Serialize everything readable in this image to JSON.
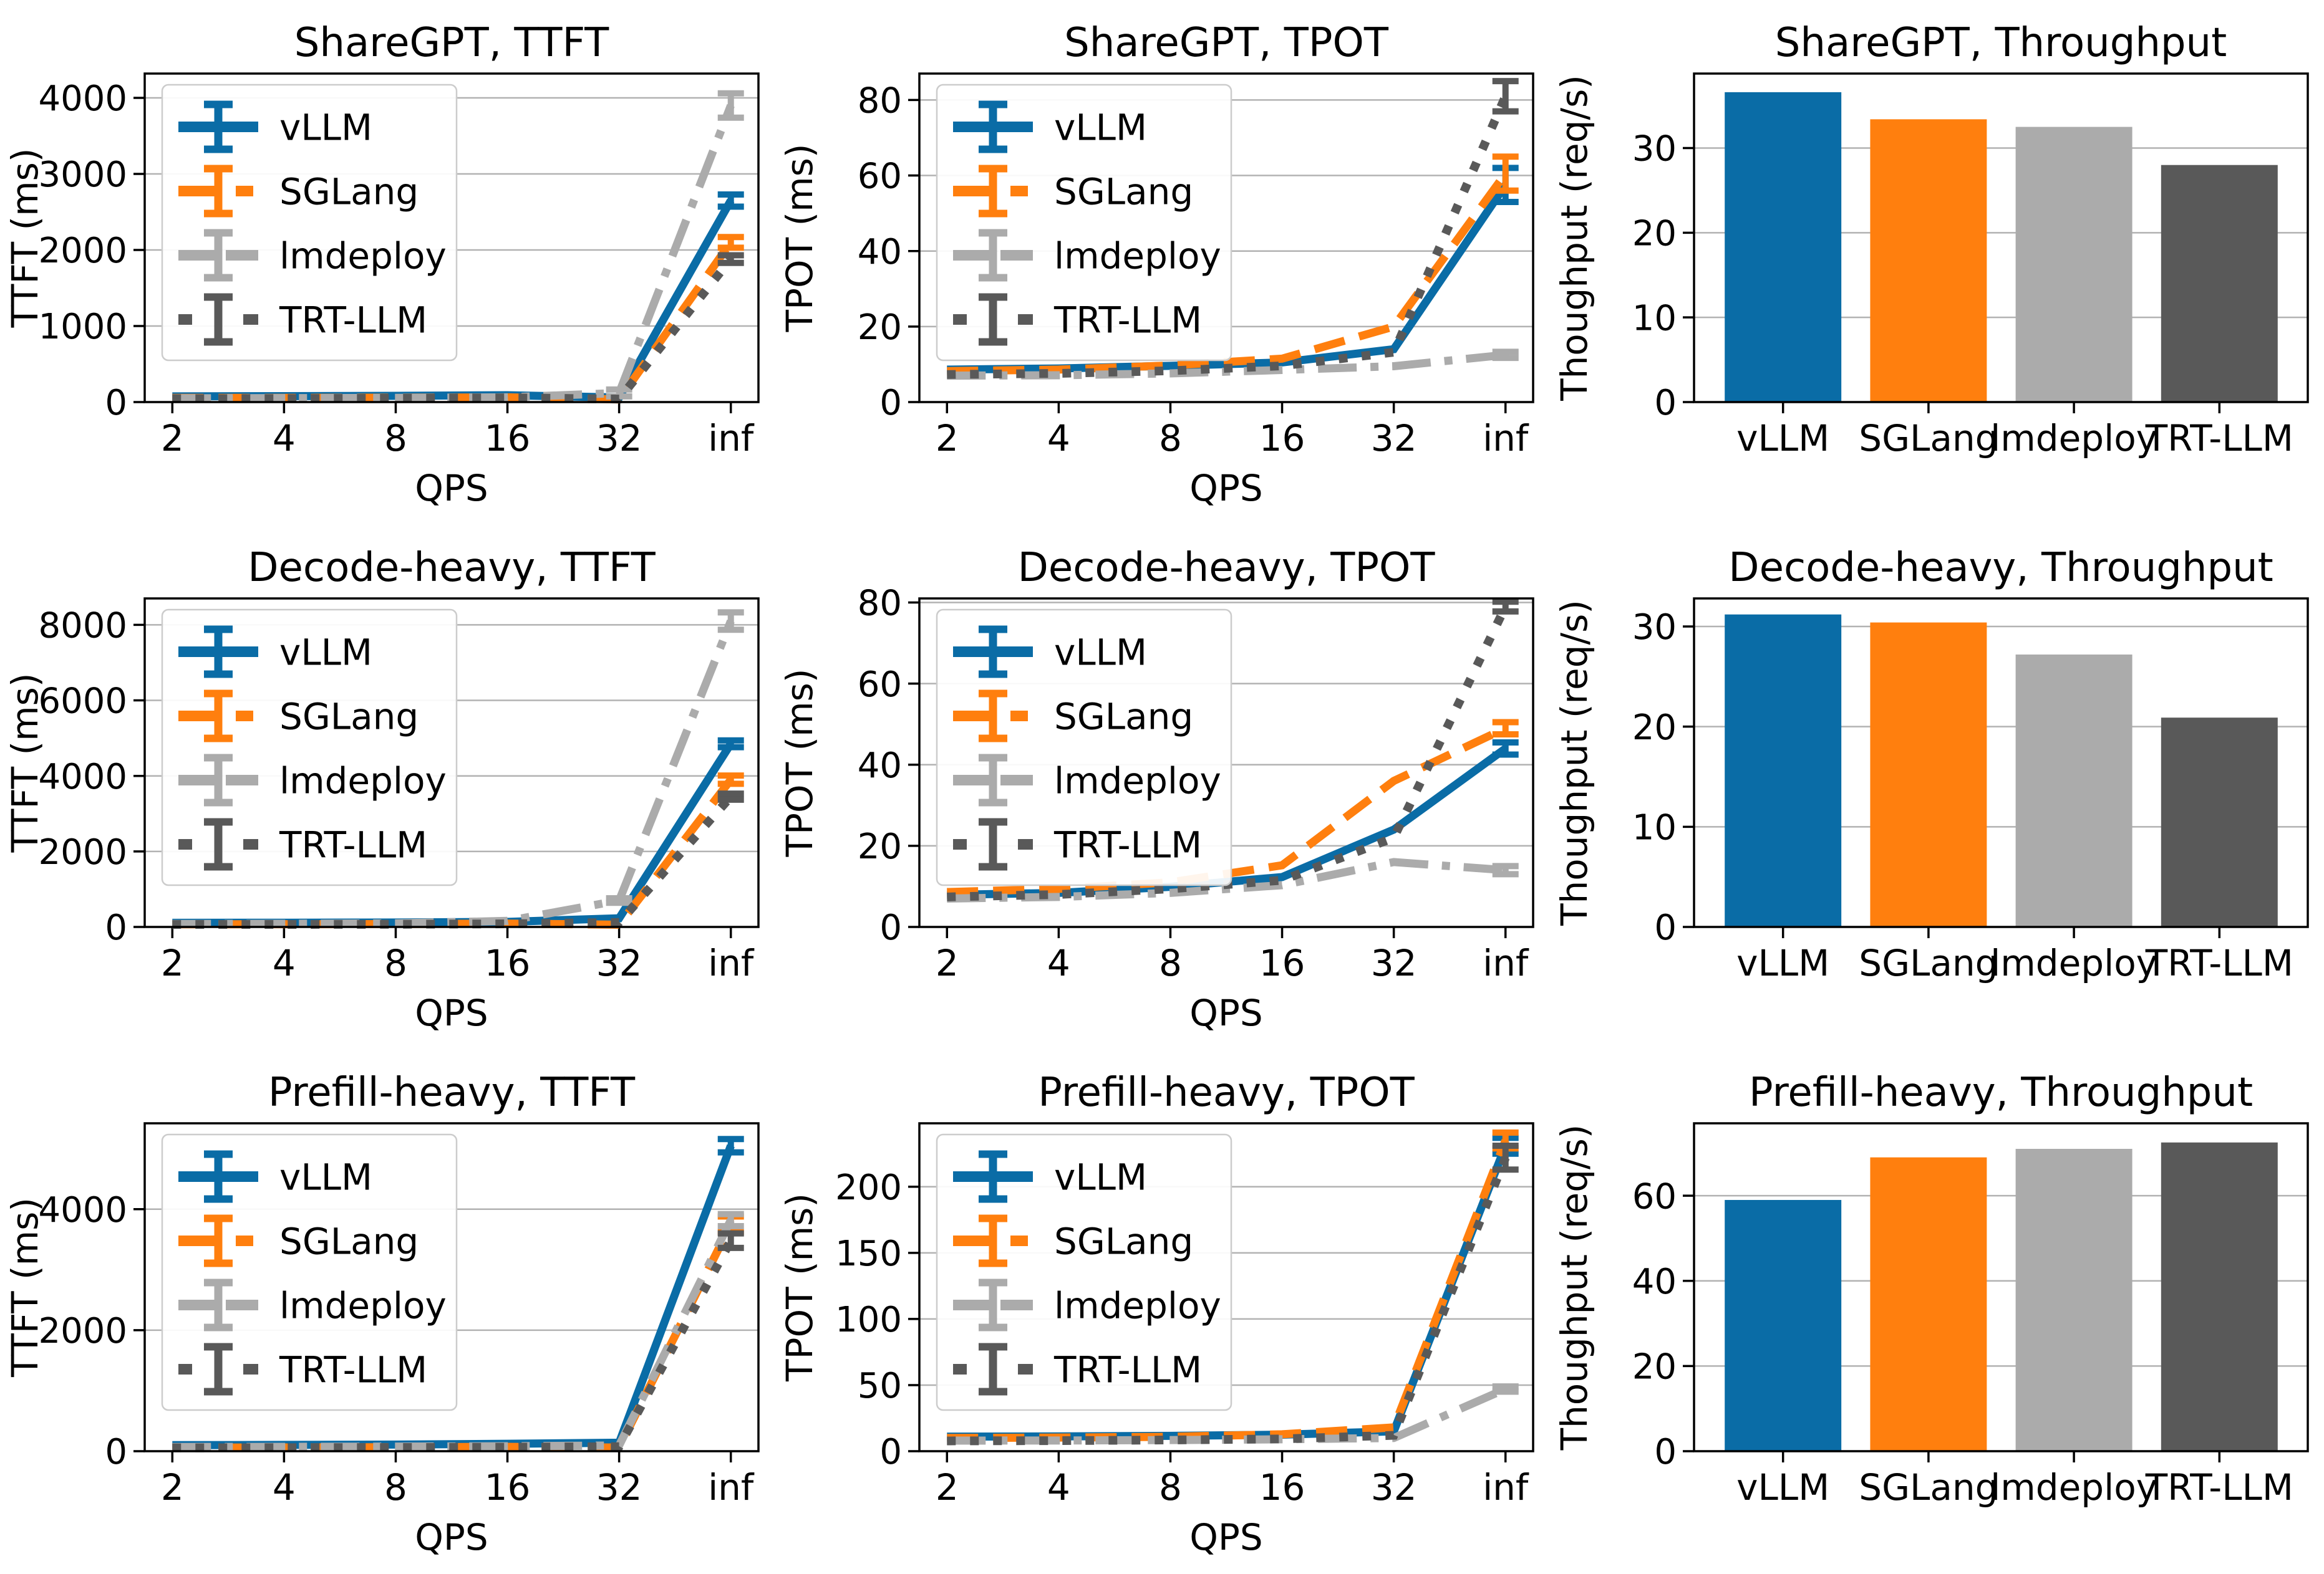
{
  "figure_title": "",
  "colors": {
    "vLLM": "#0A6CA6",
    "SGLang": "#FF7F0E",
    "lmdeploy": "#ABABAB",
    "TRT-LLM": "#595959",
    "grid": "#B2B2B2",
    "spine": "#000000",
    "legend_border": "#CCCCCC",
    "background": "#FFFFFF"
  },
  "series_meta": [
    {
      "name": "vLLM",
      "color": "#0A6CA6",
      "linestyle": "solid"
    },
    {
      "name": "SGLang",
      "color": "#FF7F0E",
      "linestyle": "dashed"
    },
    {
      "name": "lmdeploy",
      "color": "#ABABAB",
      "linestyle": "dashdot"
    },
    {
      "name": "TRT-LLM",
      "color": "#595959",
      "linestyle": "dotted"
    }
  ],
  "chart_data": [
    {
      "type": "line",
      "grid": {
        "row": 0,
        "col": 0
      },
      "title": "ShareGPT, TTFT",
      "xlabel": "QPS",
      "ylabel": "TTFT (ms)",
      "x_ticklabels": [
        "2",
        "4",
        "8",
        "16",
        "32",
        "inf"
      ],
      "yticks": [
        0,
        1000,
        2000,
        3000,
        4000
      ],
      "ylim": [
        0,
        4320
      ],
      "grid_on": true,
      "legend": true,
      "legend_position": "upper-left",
      "series": [
        {
          "name": "vLLM",
          "values": [
            75,
            78,
            82,
            90,
            60,
            2650
          ],
          "err": [
            0,
            0,
            0,
            0,
            0,
            80
          ]
        },
        {
          "name": "SGLang",
          "values": [
            55,
            55,
            58,
            62,
            35,
            2100
          ],
          "err": [
            0,
            0,
            0,
            0,
            0,
            70
          ]
        },
        {
          "name": "lmdeploy",
          "values": [
            50,
            52,
            55,
            62,
            120,
            3900
          ],
          "err": [
            0,
            0,
            0,
            0,
            45,
            160
          ]
        },
        {
          "name": "TRT-LLM",
          "values": [
            45,
            46,
            50,
            56,
            40,
            1880
          ],
          "err": [
            0,
            0,
            0,
            0,
            0,
            50
          ]
        }
      ]
    },
    {
      "type": "line",
      "grid": {
        "row": 0,
        "col": 1
      },
      "title": "ShareGPT, TPOT",
      "xlabel": "QPS",
      "ylabel": "TPOT (ms)",
      "x_ticklabels": [
        "2",
        "4",
        "8",
        "16",
        "32",
        "inf"
      ],
      "yticks": [
        0,
        20,
        40,
        60,
        80
      ],
      "ylim": [
        0,
        87
      ],
      "grid_on": true,
      "legend": true,
      "legend_position": "upper-left",
      "series": [
        {
          "name": "vLLM",
          "values": [
            8.6,
            8.9,
            9.6,
            10.5,
            14,
            57.5
          ],
          "err": [
            0,
            0,
            0,
            0,
            0,
            4.5
          ]
        },
        {
          "name": "SGLang",
          "values": [
            8.2,
            8.6,
            9.7,
            11.5,
            20,
            60.5
          ],
          "err": [
            0,
            0,
            0,
            0,
            0,
            4.5
          ]
        },
        {
          "name": "lmdeploy",
          "values": [
            7.0,
            7.1,
            7.6,
            8.5,
            9.5,
            12.5
          ],
          "err": [
            0,
            0,
            0,
            0,
            0,
            0.8
          ]
        },
        {
          "name": "TRT-LLM",
          "values": [
            7.3,
            7.6,
            8.3,
            9.6,
            13.2,
            81
          ],
          "err": [
            0,
            0,
            0,
            0,
            0,
            4
          ]
        }
      ]
    },
    {
      "type": "bar",
      "grid": {
        "row": 0,
        "col": 2
      },
      "title": "ShareGPT, Throughput",
      "xlabel": "",
      "ylabel": "Thoughput (req/s)",
      "categories": [
        "vLLM",
        "SGLang",
        "lmdeploy",
        "TRT-LLM"
      ],
      "values": [
        36.6,
        33.4,
        32.5,
        28.0
      ],
      "yticks": [
        0,
        10,
        20,
        30
      ],
      "ylim": [
        0,
        38.8
      ],
      "grid_on": true,
      "legend": false
    },
    {
      "type": "line",
      "grid": {
        "row": 1,
        "col": 0
      },
      "title": "Decode-heavy, TTFT",
      "xlabel": "QPS",
      "ylabel": "TTFT (ms)",
      "x_ticklabels": [
        "2",
        "4",
        "8",
        "16",
        "32",
        "inf"
      ],
      "yticks": [
        0,
        2000,
        4000,
        6000,
        8000
      ],
      "ylim": [
        0,
        8700
      ],
      "grid_on": true,
      "legend": true,
      "legend_position": "upper-left",
      "series": [
        {
          "name": "vLLM",
          "values": [
            110,
            112,
            118,
            135,
            230,
            4850
          ],
          "err": [
            0,
            0,
            0,
            0,
            0,
            90
          ]
        },
        {
          "name": "SGLang",
          "values": [
            70,
            72,
            76,
            88,
            60,
            3900
          ],
          "err": [
            0,
            0,
            0,
            0,
            0,
            110
          ]
        },
        {
          "name": "lmdeploy",
          "values": [
            80,
            84,
            95,
            160,
            700,
            8100
          ],
          "err": [
            0,
            0,
            0,
            0,
            60,
            230
          ]
        },
        {
          "name": "TRT-LLM",
          "values": [
            65,
            66,
            70,
            82,
            120,
            3450
          ],
          "err": [
            0,
            0,
            0,
            0,
            0,
            80
          ]
        }
      ]
    },
    {
      "type": "line",
      "grid": {
        "row": 1,
        "col": 1
      },
      "title": "Decode-heavy, TPOT",
      "xlabel": "QPS",
      "ylabel": "TPOT (ms)",
      "x_ticklabels": [
        "2",
        "4",
        "8",
        "16",
        "32",
        "inf"
      ],
      "yticks": [
        0,
        20,
        40,
        60,
        80
      ],
      "ylim": [
        0,
        81
      ],
      "grid_on": true,
      "legend": true,
      "legend_position": "upper-left",
      "series": [
        {
          "name": "vLLM",
          "values": [
            7.9,
            8.4,
            9.9,
            12.3,
            24,
            44
          ],
          "err": [
            0,
            0,
            0,
            0,
            0,
            1.5
          ]
        },
        {
          "name": "SGLang",
          "values": [
            8.6,
            9.4,
            11.0,
            15.2,
            36,
            49
          ],
          "err": [
            0,
            0,
            0,
            0,
            0,
            1.5
          ]
        },
        {
          "name": "lmdeploy",
          "values": [
            7.0,
            7.4,
            8.4,
            10.3,
            16,
            14
          ],
          "err": [
            0,
            0,
            0,
            0,
            0,
            1.0
          ]
        },
        {
          "name": "TRT-LLM",
          "values": [
            7.4,
            8.0,
            9.4,
            11.5,
            22,
            79
          ],
          "err": [
            0,
            0,
            0,
            0,
            0,
            1.2
          ]
        }
      ]
    },
    {
      "type": "bar",
      "grid": {
        "row": 1,
        "col": 2
      },
      "title": "Decode-heavy, Throughput",
      "xlabel": "",
      "ylabel": "Thoughput (req/s)",
      "categories": [
        "vLLM",
        "SGLang",
        "lmdeploy",
        "TRT-LLM"
      ],
      "values": [
        31.2,
        30.4,
        27.2,
        20.9
      ],
      "yticks": [
        0,
        10,
        20,
        30
      ],
      "ylim": [
        0,
        32.8
      ],
      "grid_on": true,
      "legend": false
    },
    {
      "type": "line",
      "grid": {
        "row": 2,
        "col": 0
      },
      "title": "Prefill-heavy, TTFT",
      "xlabel": "QPS",
      "ylabel": "TTFT (ms)",
      "x_ticklabels": [
        "2",
        "4",
        "8",
        "16",
        "32",
        "inf"
      ],
      "yticks": [
        0,
        2000,
        4000
      ],
      "ylim": [
        0,
        5420
      ],
      "grid_on": true,
      "legend": true,
      "legend_position": "upper-left",
      "series": [
        {
          "name": "vLLM",
          "values": [
            100,
            104,
            110,
            122,
            140,
            5050
          ],
          "err": [
            0,
            0,
            0,
            0,
            0,
            110
          ]
        },
        {
          "name": "SGLang",
          "values": [
            60,
            62,
            66,
            72,
            60,
            3750
          ],
          "err": [
            0,
            0,
            0,
            0,
            0,
            130
          ]
        },
        {
          "name": "lmdeploy",
          "values": [
            70,
            72,
            76,
            82,
            95,
            3820
          ],
          "err": [
            0,
            0,
            0,
            0,
            0,
            100
          ]
        },
        {
          "name": "TRT-LLM",
          "values": [
            55,
            58,
            61,
            66,
            75,
            3480
          ],
          "err": [
            0,
            0,
            0,
            0,
            0,
            120
          ]
        }
      ]
    },
    {
      "type": "line",
      "grid": {
        "row": 2,
        "col": 1
      },
      "title": "Prefill-heavy, TPOT",
      "xlabel": "QPS",
      "ylabel": "TPOT (ms)",
      "x_ticklabels": [
        "2",
        "4",
        "8",
        "16",
        "32",
        "inf"
      ],
      "yticks": [
        0,
        50,
        100,
        150,
        200
      ],
      "ylim": [
        0,
        248
      ],
      "grid_on": true,
      "legend": true,
      "legend_position": "upper-left",
      "series": [
        {
          "name": "vLLM",
          "values": [
            11,
            11.2,
            11.6,
            12.5,
            15,
            231
          ],
          "err": [
            0,
            0,
            0,
            0,
            0,
            6
          ]
        },
        {
          "name": "SGLang",
          "values": [
            10,
            10.3,
            10.9,
            12.8,
            18,
            235
          ],
          "err": [
            0,
            0,
            0,
            0,
            0,
            6
          ]
        },
        {
          "name": "lmdeploy",
          "values": [
            8,
            8.1,
            8.4,
            9.0,
            10,
            47
          ],
          "err": [
            0,
            0,
            0,
            0,
            0,
            2
          ]
        },
        {
          "name": "TRT-LLM",
          "values": [
            7.8,
            8.0,
            8.5,
            9.3,
            12,
            222
          ],
          "err": [
            0,
            0,
            0,
            0,
            0,
            9
          ]
        }
      ]
    },
    {
      "type": "bar",
      "grid": {
        "row": 2,
        "col": 2
      },
      "title": "Prefill-heavy, Throughput",
      "xlabel": "",
      "ylabel": "Thoughput (req/s)",
      "categories": [
        "vLLM",
        "SGLang",
        "lmdeploy",
        "TRT-LLM"
      ],
      "values": [
        59,
        69,
        71,
        72.5
      ],
      "yticks": [
        0,
        20,
        40,
        60
      ],
      "ylim": [
        0,
        77
      ],
      "grid_on": true,
      "legend": false
    }
  ]
}
